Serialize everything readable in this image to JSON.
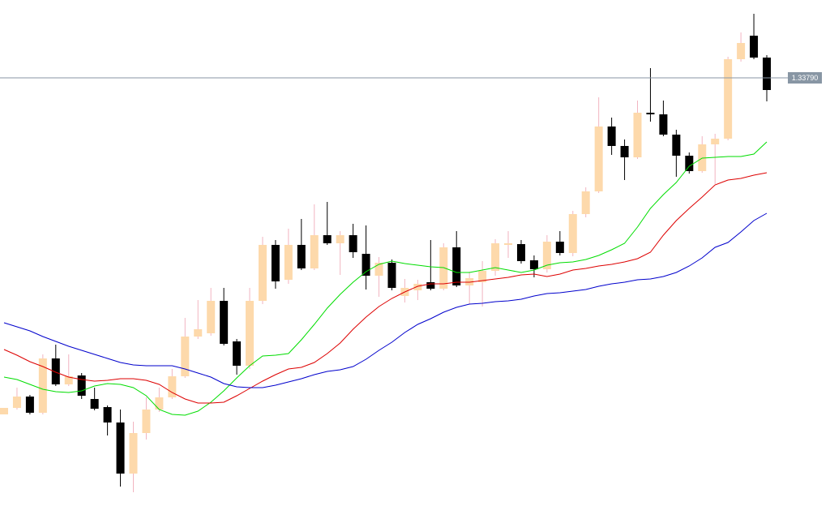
{
  "chart_data": {
    "type": "candlestick",
    "ylim": [
      1.33246,
      1.33886
    ],
    "up_color": "#fdd9ab",
    "up_wick_color": "#f2b4c0",
    "down_color": "#000000",
    "open": [
      1.33375,
      1.33383,
      1.33397,
      1.33377,
      1.33444,
      1.33412,
      1.33423,
      1.33394,
      1.33384,
      1.33365,
      1.33302,
      1.33352,
      1.33381,
      1.33396,
      1.33422,
      1.33471,
      1.33475,
      1.33515,
      1.33465,
      1.33435,
      1.33515,
      1.33584,
      1.33541,
      1.33584,
      1.33555,
      1.33596,
      1.33586,
      1.33596,
      1.33573,
      1.33546,
      1.33562,
      1.33521,
      1.33528,
      1.33538,
      1.3353,
      1.33581,
      1.33534,
      1.33538,
      1.33552,
      1.33584,
      1.33585,
      1.33565,
      1.33554,
      1.33588,
      1.33574,
      1.33622,
      1.3365,
      1.3373,
      1.33706,
      1.33692,
      1.33747,
      1.33745,
      1.3372,
      1.33694,
      1.33675,
      1.33708,
      1.33715,
      1.33813,
      1.33842,
      1.33815
    ],
    "high": [
      1.33383,
      1.33408,
      1.33399,
      1.33449,
      1.33461,
      1.33449,
      1.33426,
      1.33408,
      1.33386,
      1.33381,
      1.33366,
      1.33396,
      1.33408,
      1.33431,
      1.33494,
      1.33516,
      1.33531,
      1.33531,
      1.33468,
      1.33531,
      1.33594,
      1.3359,
      1.33604,
      1.33616,
      1.33634,
      1.33637,
      1.33601,
      1.3361,
      1.33608,
      1.33569,
      1.33566,
      1.33542,
      1.33541,
      1.3359,
      1.33586,
      1.33601,
      1.33551,
      1.33564,
      1.33591,
      1.33601,
      1.3359,
      1.33571,
      1.33596,
      1.33601,
      1.33626,
      1.33655,
      1.33766,
      1.33741,
      1.33714,
      1.33762,
      1.33802,
      1.33762,
      1.33726,
      1.33698,
      1.33718,
      1.33721,
      1.33816,
      1.33846,
      1.33869,
      1.33818
    ],
    "low": [
      1.33375,
      1.33381,
      1.33375,
      1.33375,
      1.3341,
      1.3341,
      1.33394,
      1.3338,
      1.33349,
      1.33286,
      1.33279,
      1.33344,
      1.33378,
      1.33394,
      1.3342,
      1.33468,
      1.33472,
      1.3346,
      1.33424,
      1.33431,
      1.33511,
      1.3353,
      1.33536,
      1.33553,
      1.33553,
      1.33584,
      1.33547,
      1.33568,
      1.33529,
      1.3352,
      1.33528,
      1.33513,
      1.33516,
      1.33528,
      1.33528,
      1.33532,
      1.33511,
      1.33508,
      1.33546,
      1.33568,
      1.33561,
      1.33544,
      1.3355,
      1.33571,
      1.3357,
      1.33618,
      1.33648,
      1.33695,
      1.33664,
      1.3369,
      1.33736,
      1.33718,
      1.33668,
      1.33672,
      1.33673,
      1.33659,
      1.33713,
      1.3381,
      1.33813,
      1.33761
    ],
    "close": [
      1.33383,
      1.33397,
      1.33377,
      1.33444,
      1.33412,
      1.33422,
      1.33398,
      1.33382,
      1.33365,
      1.33302,
      1.33352,
      1.33381,
      1.33396,
      1.33422,
      1.33471,
      1.3348,
      1.33515,
      1.33462,
      1.33435,
      1.33515,
      1.33584,
      1.33539,
      1.33584,
      1.33555,
      1.33596,
      1.33586,
      1.33596,
      1.33575,
      1.33546,
      1.33562,
      1.33531,
      1.33531,
      1.33536,
      1.3353,
      1.33581,
      1.33534,
      1.33543,
      1.33552,
      1.33586,
      1.33586,
      1.33564,
      1.33554,
      1.33588,
      1.33574,
      1.33622,
      1.3365,
      1.3373,
      1.33706,
      1.33692,
      1.33747,
      1.33745,
      1.3372,
      1.33694,
      1.33675,
      1.33708,
      1.33715,
      1.33813,
      1.33833,
      1.33815,
      1.33775
    ],
    "series": [
      {
        "color": "#00dd00",
        "values": [
          1.33421,
          1.33418,
          1.33412,
          1.33406,
          1.33403,
          1.33402,
          1.33404,
          1.3341,
          1.33413,
          1.33412,
          1.33408,
          1.33398,
          1.33381,
          1.33375,
          1.33374,
          1.33379,
          1.3339,
          1.33404,
          1.3342,
          1.33435,
          1.33447,
          1.33448,
          1.3345,
          1.33467,
          1.33486,
          1.33506,
          1.33523,
          1.33538,
          1.33551,
          1.3356,
          1.33564,
          1.33561,
          1.33559,
          1.33557,
          1.33556,
          1.3355,
          1.3355,
          1.33553,
          1.33556,
          1.33553,
          1.3355,
          1.33553,
          1.33559,
          1.33562,
          1.33563,
          1.33566,
          1.33571,
          1.33578,
          1.33586,
          1.33606,
          1.33629,
          1.33646,
          1.33661,
          1.33681,
          1.33691,
          1.33692,
          1.33693,
          1.33693,
          1.33696,
          1.33711
        ]
      },
      {
        "color": "#dd0000",
        "values": [
          1.33455,
          1.33448,
          1.3344,
          1.33434,
          1.33427,
          1.33421,
          1.33418,
          1.33416,
          1.33417,
          1.33419,
          1.33419,
          1.33417,
          1.33412,
          1.33402,
          1.33394,
          1.33389,
          1.33389,
          1.3339,
          1.33398,
          1.33407,
          1.33416,
          1.33424,
          1.33431,
          1.33433,
          1.33439,
          1.3345,
          1.33463,
          1.3348,
          1.33495,
          1.33508,
          1.33518,
          1.33526,
          1.33533,
          1.33536,
          1.33536,
          1.33538,
          1.33538,
          1.3354,
          1.33542,
          1.33544,
          1.33547,
          1.33548,
          1.33545,
          1.33548,
          1.33553,
          1.33555,
          1.33558,
          1.3356,
          1.33563,
          1.33567,
          1.33575,
          1.33596,
          1.33614,
          1.33629,
          1.33643,
          1.33658,
          1.33664,
          1.33666,
          1.3367,
          1.33673
        ]
      },
      {
        "color": "#0000cc",
        "values": [
          1.33488,
          1.33483,
          1.33478,
          1.33471,
          1.33465,
          1.33459,
          1.33454,
          1.33449,
          1.33444,
          1.33439,
          1.33436,
          1.33435,
          1.33435,
          1.33435,
          1.33431,
          1.33426,
          1.33421,
          1.33413,
          1.33409,
          1.33408,
          1.33408,
          1.33411,
          1.33415,
          1.33419,
          1.33424,
          1.33428,
          1.3343,
          1.33434,
          1.33443,
          1.33454,
          1.33464,
          1.33476,
          1.33486,
          1.33493,
          1.33501,
          1.33507,
          1.33511,
          1.33512,
          1.33514,
          1.33515,
          1.33517,
          1.33521,
          1.33524,
          1.33525,
          1.33527,
          1.33529,
          1.33533,
          1.33536,
          1.33538,
          1.33541,
          1.33542,
          1.33545,
          1.3355,
          1.33558,
          1.33568,
          1.33581,
          1.33587,
          1.336,
          1.33614,
          1.33623
        ]
      }
    ],
    "price_line": {
      "value": 1.3379,
      "label": "1.33790"
    },
    "price_line_color": "#8896a4"
  }
}
